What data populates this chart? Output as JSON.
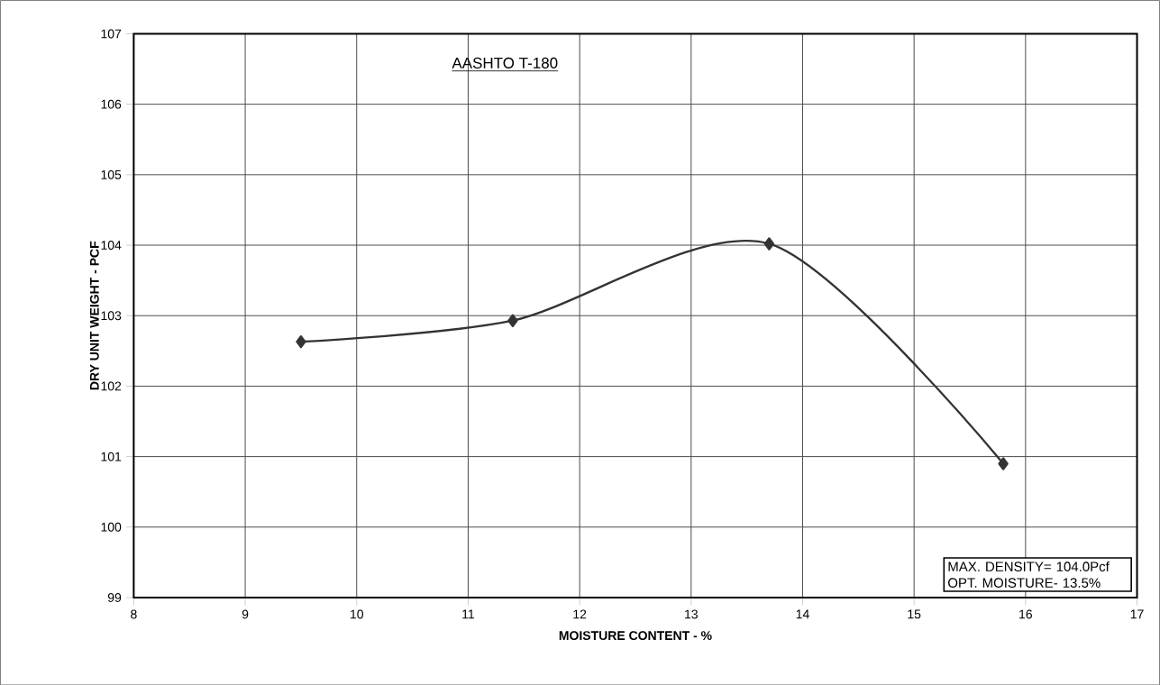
{
  "chart_data": {
    "type": "line",
    "title": "AASHTO T-180",
    "xlabel": "MOISTURE CONTENT - %",
    "ylabel": "DRY UNIT WEIGHT - PCF",
    "x": [
      9.5,
      11.4,
      13.7,
      15.8
    ],
    "series": [
      {
        "color": "#333333",
        "values": [
          102.63,
          102.93,
          104.02,
          100.9
        ]
      }
    ],
    "xlim": [
      8,
      17
    ],
    "xticks": [
      8,
      9,
      10,
      11,
      12,
      13,
      14,
      15,
      16,
      17
    ],
    "ylim": [
      99,
      107
    ],
    "yticks": [
      99,
      100,
      101,
      102,
      103,
      104,
      105,
      106,
      107
    ],
    "grid": true,
    "marker": "diamond",
    "line_style": "solid",
    "annotations": [
      "MAX. DENSITY= 104.0Pcf",
      "OPT. MOISTURE- 13.5%"
    ]
  }
}
